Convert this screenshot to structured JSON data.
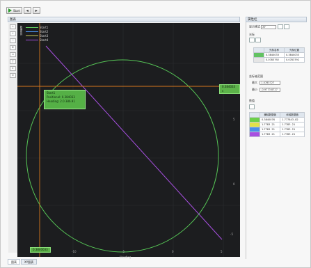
{
  "toolbar": {
    "run_label": "Start",
    "nav_prev": "◂",
    "nav_next": "▸"
  },
  "left_panel": {
    "title": "图表"
  },
  "right_panel": {
    "title": "属性栏"
  },
  "plot": {
    "series": [
      {
        "name": "Start1",
        "color": "#5cc55c"
      },
      {
        "name": "Start2",
        "color": "#4a8fe8"
      },
      {
        "name": "Start3",
        "color": "#c9c95a"
      },
      {
        "name": "Start4",
        "color": "#a74fe0"
      }
    ],
    "legend_vertical_label": "数据系列",
    "tooltip": {
      "line1": "Start1",
      "line2": "Positional: 0.384033",
      "line3": "Heading: 2.0 386.91"
    },
    "tag_top_right": "0.384033 s",
    "tag_bottom_left": "0.3840033",
    "x_axis_title": "Heading",
    "x_ticks": [
      "-10",
      "-5",
      "0",
      "5",
      "10"
    ],
    "y_ticks": [
      "5",
      "0",
      "-5",
      "-10"
    ]
  },
  "bottom_tabs": [
    "图表",
    "XY图表"
  ],
  "props": {
    "display_mode_label": "显示模式",
    "display_mode_value": "XY",
    "cursors_label": "光标",
    "cursor_table_headers": [
      "",
      "光标名称",
      "光标位置",
      ""
    ],
    "cursor_rows": [
      {
        "color": "#62c262",
        "name": "0.3840033",
        "pos": "0.3840033"
      },
      {
        "color": "#e5e5e5",
        "name": "0.0783792",
        "pos": "0.0783792"
      }
    ],
    "axis_label": "坐标轴范围",
    "axis_rows": [
      {
        "label": "最大",
        "value": "1.0783727"
      },
      {
        "label": "最小",
        "value": "-0.9773 8727"
      }
    ],
    "values_label": "数值",
    "values_table_headers": [
      "",
      "横轴数据值",
      "纵轴数据值"
    ],
    "values_rows": [
      {
        "color": "#6ccf4a",
        "x": "0.3840076",
        "y": "1.777843 .82"
      },
      {
        "color": "#e1e14a",
        "x": "1.7783 .21",
        "y": "1.7783 .21"
      },
      {
        "color": "#4a8fe8",
        "x": "1.7783 .21",
        "y": "1.7783 .21"
      },
      {
        "color": "#a74fe0",
        "x": "1.7783 .21",
        "y": "1.7783 .21"
      }
    ]
  }
}
